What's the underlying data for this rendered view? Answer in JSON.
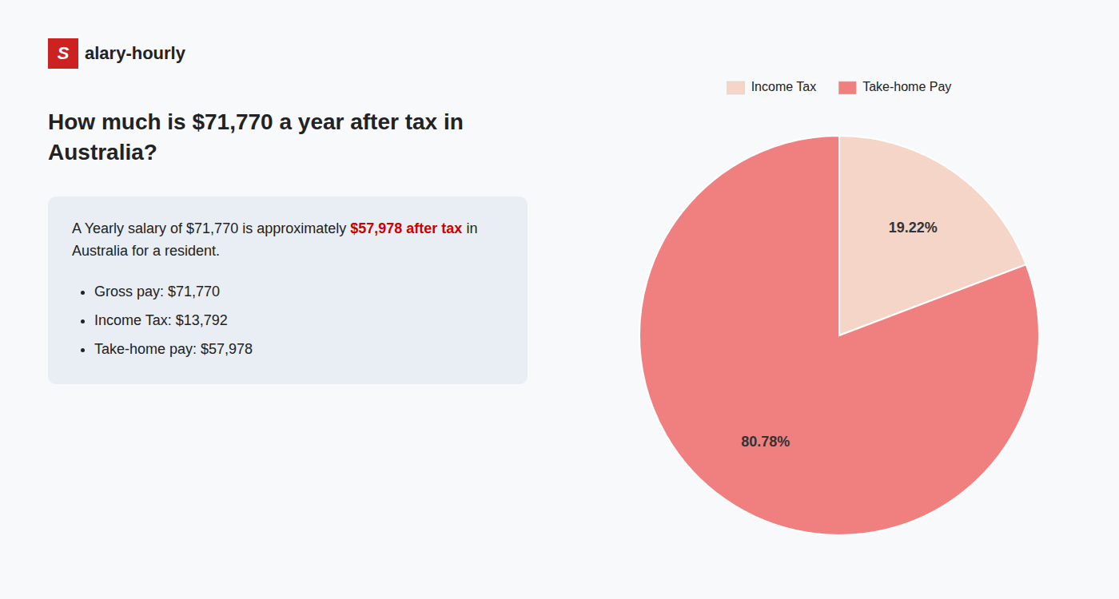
{
  "chart_data": {
    "type": "pie",
    "title": "How much is $71,770 a year after tax in Australia?",
    "categories": [
      "Income Tax",
      "Take-home Pay"
    ],
    "values": [
      19.22,
      80.78
    ],
    "value_labels": [
      "19.22%",
      "80.78%"
    ],
    "colors": [
      "#f5d5c8",
      "#f08080"
    ],
    "data_labels": true,
    "legend": "top",
    "annotations": [
      [
        {
          "text": "S",
          "color": "#cc2222"
        },
        {
          "text": "alary-hourly"
        }
      ],
      [
        {
          "text": "A Yearly salary of $71,770 is approximately"
        },
        {
          "text": "$57,978 after tax",
          "color": "#cc0000"
        },
        {
          "text": "in Australia for a resident."
        }
      ],
      [
        {
          "text": "Gross pay: $71,770"
        }
      ],
      [
        {
          "text": "Income Tax: $13,792"
        }
      ],
      [
        {
          "text": "Take-home pay: $57,978"
        }
      ]
    ]
  }
}
